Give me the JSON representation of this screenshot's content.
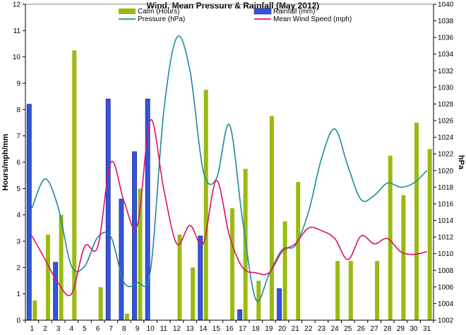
{
  "chart_data": {
    "type": "bar",
    "title": "Wind, Mean Pressure & Rainfall (May 2012)",
    "ylabel_left": "Hours/mph/mm",
    "ylabel_right": "hPa",
    "categories": [
      "1",
      "2",
      "3",
      "4",
      "5",
      "6",
      "7",
      "8",
      "9",
      "10",
      "11",
      "12",
      "13",
      "14",
      "15",
      "16",
      "17",
      "18",
      "19",
      "20",
      "21",
      "22",
      "23",
      "24",
      "25",
      "26",
      "27",
      "28",
      "29",
      "30",
      "31"
    ],
    "ylim_left": [
      0,
      12
    ],
    "yticks_left": [
      "0",
      "1",
      "2",
      "3",
      "4",
      "5",
      "6",
      "7",
      "8",
      "9",
      "10",
      "11",
      "12"
    ],
    "ylim_right": [
      1002,
      1040
    ],
    "yticks_right": [
      "1002",
      "1004",
      "1006",
      "1008",
      "1010",
      "1012",
      "1014",
      "1016",
      "1018",
      "1020",
      "1022",
      "1024",
      "1026",
      "1028",
      "1030",
      "1032",
      "1034",
      "1036",
      "1038",
      "1040"
    ],
    "grid": false,
    "legend_position": "top",
    "series": [
      {
        "name": "Calm (Hours)",
        "kind": "bar",
        "color": "#99bb11",
        "values": [
          0.75,
          3.25,
          4.0,
          10.25,
          0,
          1.25,
          0,
          0.25,
          5.0,
          0,
          0,
          3.25,
          2.0,
          8.75,
          0,
          4.25,
          5.75,
          1.5,
          7.75,
          3.75,
          5.25,
          0,
          0,
          2.25,
          2.25,
          0,
          2.25,
          6.25,
          4.75,
          7.5,
          6.5
        ]
      },
      {
        "name": "Rainfall (mm)",
        "kind": "bar",
        "color": "#3355dd",
        "values": [
          8.2,
          0,
          2.2,
          0,
          0,
          0,
          8.4,
          4.6,
          6.4,
          8.4,
          0,
          0,
          0,
          3.2,
          0,
          0,
          0.4,
          0,
          0,
          1.2,
          0,
          0,
          0,
          0,
          0,
          0,
          0,
          0,
          0,
          0,
          0
        ]
      },
      {
        "name": "Pressure (hPa)",
        "kind": "line",
        "axis": "right",
        "color": "#228899",
        "values": [
          1015.5,
          1019.0,
          1015.5,
          1008.5,
          1008.5,
          1012.0,
          1012.0,
          1006.5,
          1006.5,
          1008.0,
          1027.0,
          1036.0,
          1032.0,
          1020.0,
          1019.0,
          1025.5,
          1014.0,
          1004.5,
          1007.5,
          1010.5,
          1011.0,
          1015.0,
          1021.5,
          1025.0,
          1020.5,
          1016.5,
          1017.0,
          1018.5,
          1018.0,
          1018.5,
          1020.0
        ]
      },
      {
        "name": "Mean Wind Speed (mph)",
        "kind": "line",
        "axis": "left",
        "color": "#dd1166",
        "values": [
          3.2,
          2.3,
          1.4,
          1.0,
          2.8,
          2.8,
          6.0,
          4.5,
          3.6,
          7.6,
          5.0,
          2.9,
          3.6,
          2.9,
          5.3,
          3.2,
          2.0,
          1.8,
          1.8,
          2.6,
          2.9,
          3.5,
          3.4,
          3.1,
          2.3,
          3.2,
          2.9,
          3.1,
          2.6,
          2.5,
          2.6
        ]
      }
    ]
  }
}
